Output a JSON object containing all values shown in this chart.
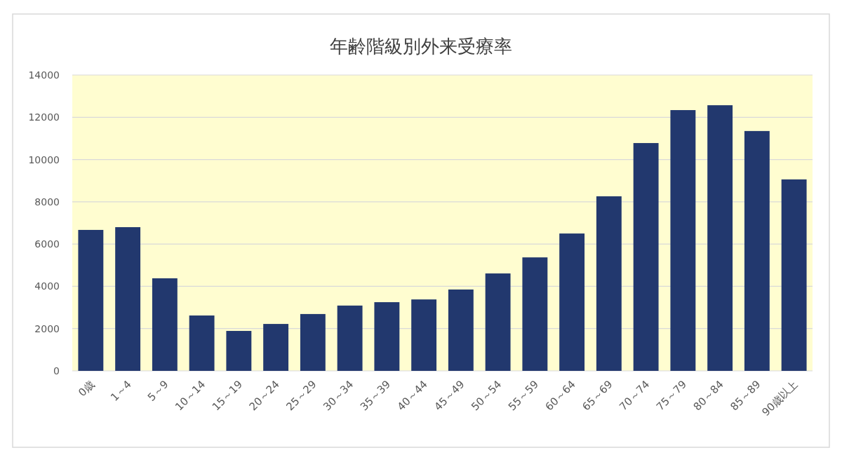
{
  "chart_data": {
    "type": "bar",
    "title": "年齢階級別外来受療率",
    "categories": [
      "0歳",
      "1～4",
      "5～9",
      "10～14",
      "15～19",
      "20～24",
      "25～29",
      "30～34",
      "35～39",
      "40～44",
      "45～49",
      "50～54",
      "55～59",
      "60～64",
      "65～69",
      "70～74",
      "75～79",
      "80～84",
      "85～89",
      "90歳以上"
    ],
    "values": [
      6670,
      6800,
      4380,
      2620,
      1890,
      2220,
      2690,
      3090,
      3250,
      3380,
      3850,
      4610,
      5370,
      6500,
      8260,
      10780,
      12340,
      12570,
      11350,
      9060
    ],
    "color": "#22386e",
    "ylim": [
      0,
      14000
    ],
    "yticks": [
      0,
      2000,
      4000,
      6000,
      8000,
      10000,
      12000,
      14000
    ],
    "grid": "y"
  }
}
